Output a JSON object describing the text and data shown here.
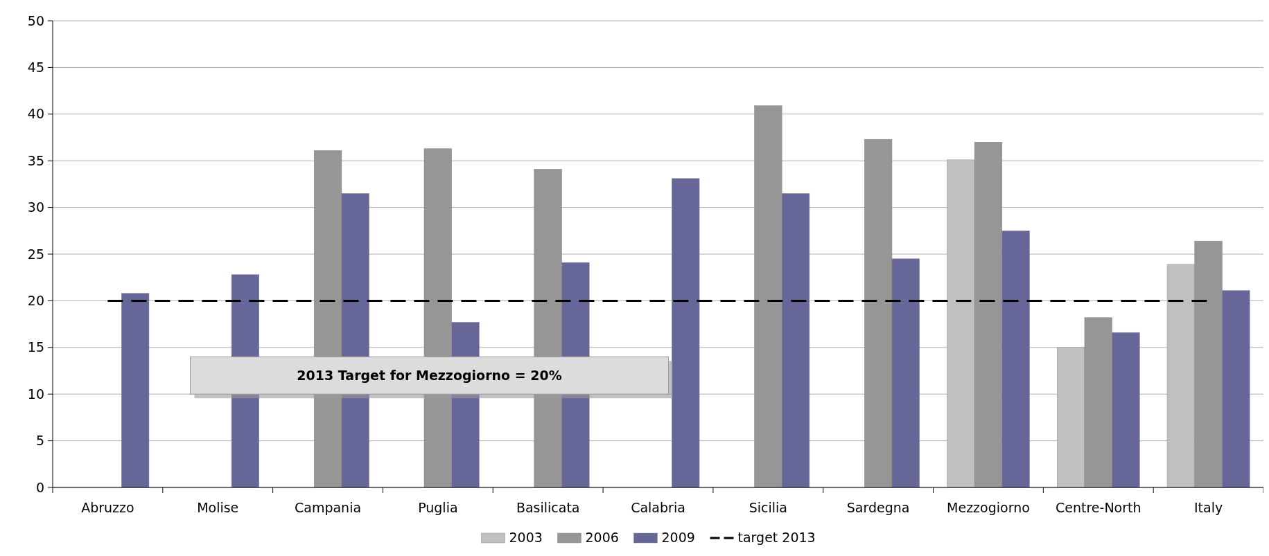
{
  "chart_data": {
    "type": "bar",
    "categories": [
      "Abruzzo",
      "Molise",
      "Campania",
      "Puglia",
      "Basilicata",
      "Calabria",
      "Sicilia",
      "Sardegna",
      "Mezzogiorno",
      "Centre-North",
      "Italy"
    ],
    "series": [
      {
        "name": "2003",
        "color": "#c0c0c0",
        "values": [
          null,
          null,
          null,
          null,
          null,
          null,
          null,
          null,
          35.1,
          15.0,
          23.9
        ]
      },
      {
        "name": "2006",
        "color": "#969696",
        "values": [
          null,
          null,
          36.1,
          36.3,
          34.1,
          null,
          40.9,
          37.3,
          37.0,
          18.2,
          26.4
        ]
      },
      {
        "name": "2009",
        "color": "#666699",
        "values": [
          20.8,
          22.8,
          31.5,
          17.7,
          24.1,
          33.1,
          31.5,
          24.5,
          27.5,
          16.6,
          21.1
        ]
      },
      {
        "name": "target 2013",
        "type": "line",
        "color": "#000000",
        "line_style": "dashed",
        "values": [
          20,
          20,
          20,
          20,
          20,
          20,
          20,
          20,
          20,
          20,
          20
        ]
      }
    ],
    "ylim": [
      0,
      50
    ],
    "yticks": [
      0,
      5,
      10,
      15,
      20,
      25,
      30,
      35,
      40,
      45,
      50
    ],
    "grid": "y",
    "legend": "bottom",
    "annotations": [
      "2013 Target for Mezzogiorno = 20%"
    ]
  }
}
